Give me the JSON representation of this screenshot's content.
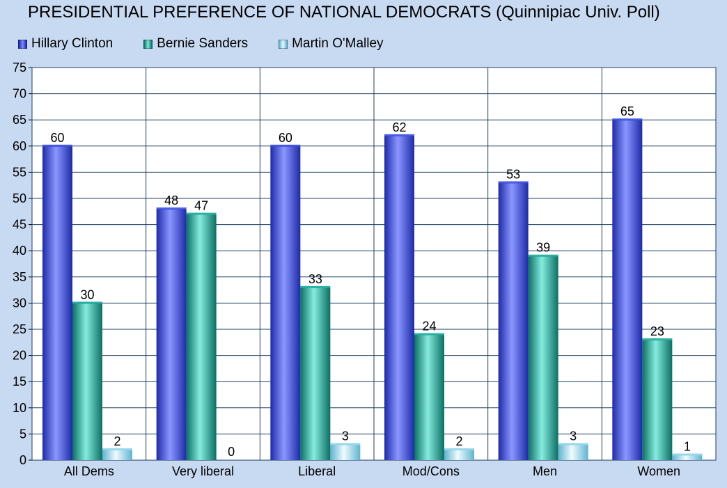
{
  "chart_data": {
    "type": "bar",
    "title": "PRESIDENTIAL PREFERENCE OF NATIONAL DEMOCRATS (Quinnipiac Univ. Poll)",
    "categories": [
      "All Dems",
      "Very liberal",
      "Liberal",
      "Mod/Cons",
      "Men",
      "Women"
    ],
    "series": [
      {
        "name": "Hillary Clinton",
        "color": "#3a4de0",
        "values": [
          60,
          48,
          60,
          62,
          53,
          65
        ]
      },
      {
        "name": "Bernie Sanders",
        "color": "#1ba99a",
        "values": [
          30,
          47,
          33,
          24,
          39,
          23
        ]
      },
      {
        "name": "Martin O'Malley",
        "color": "#8fd3ea",
        "values": [
          2,
          0,
          3,
          2,
          3,
          1
        ]
      }
    ],
    "ylim": [
      0,
      75
    ],
    "yticks": [
      "0",
      "5",
      "10",
      "15",
      "20",
      "25",
      "30",
      "35",
      "40",
      "45",
      "50",
      "55",
      "60",
      "65",
      "70",
      "75"
    ],
    "grid": true,
    "legend_position": "top-left",
    "plot_background": "#ffffff",
    "page_background": "#c8daf2",
    "grid_color": "#1f3f5f"
  }
}
